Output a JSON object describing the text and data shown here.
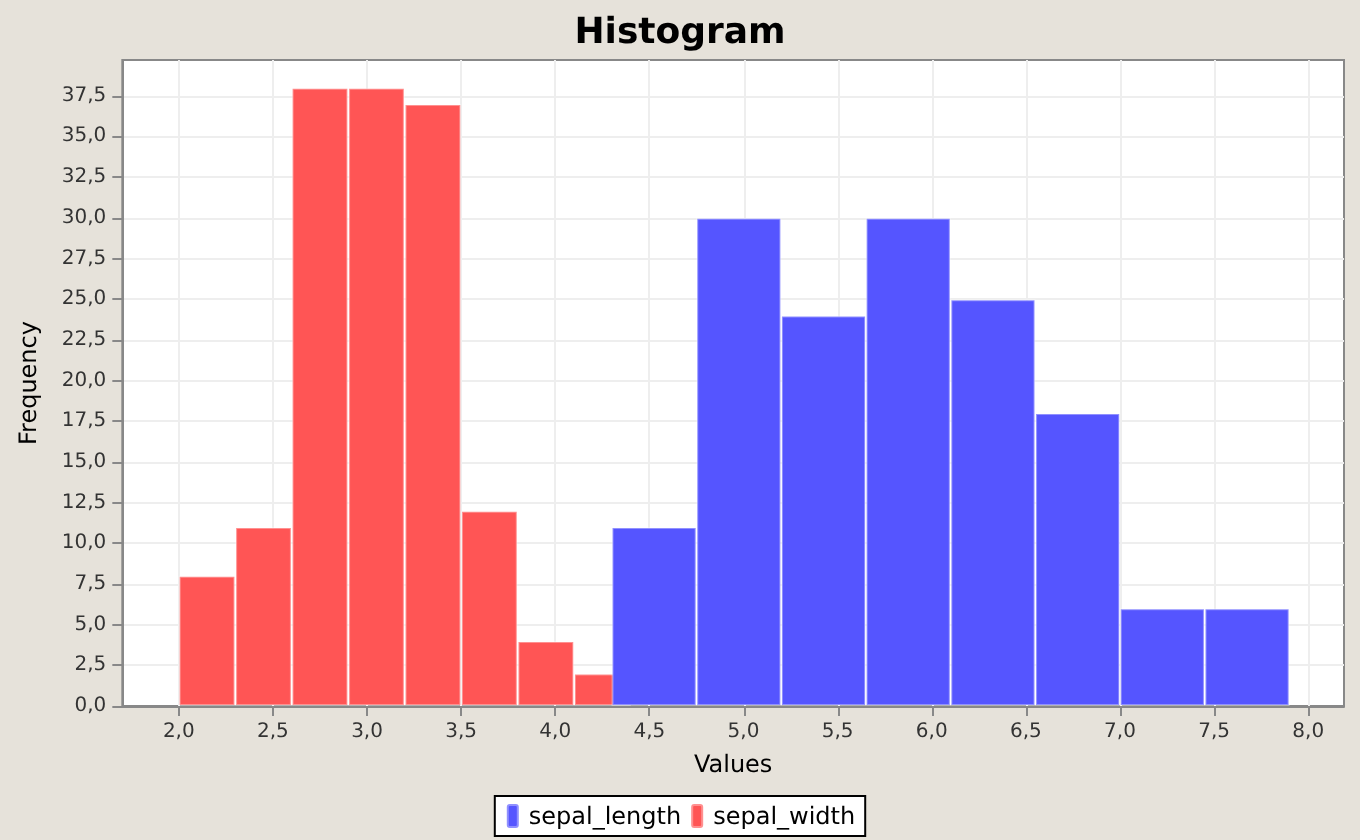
{
  "chart_data": {
    "type": "bar",
    "title": "Histogram",
    "xlabel": "Values",
    "ylabel": "Frequency",
    "series": [
      {
        "name": "sepal_length",
        "color": "#5555ff",
        "x": [
          4.525,
          4.975,
          5.425,
          5.875,
          6.325,
          6.775,
          7.225,
          7.675
        ],
        "values": [
          11,
          30,
          24,
          30,
          25,
          18,
          6,
          6
        ]
      },
      {
        "name": "sepal_width",
        "color": "#ff5555",
        "x": [
          2.15,
          2.45,
          2.75,
          3.05,
          3.35,
          3.65,
          3.95,
          4.25
        ],
        "values": [
          8,
          11,
          38,
          38,
          37,
          12,
          4,
          2
        ]
      }
    ],
    "xlim": [
      1.7,
      8.19
    ],
    "xticks": [
      {
        "value": 2,
        "label": "2,0"
      },
      {
        "value": 2.5,
        "label": "2,5"
      },
      {
        "value": 3,
        "label": "3,0"
      },
      {
        "value": 3.5,
        "label": "3,5"
      },
      {
        "value": 4,
        "label": "4,0"
      },
      {
        "value": 4.5,
        "label": "4,5"
      },
      {
        "value": 5,
        "label": "5,0"
      },
      {
        "value": 5.5,
        "label": "5,5"
      },
      {
        "value": 6,
        "label": "6,0"
      },
      {
        "value": 6.5,
        "label": "6,5"
      },
      {
        "value": 7,
        "label": "7,0"
      },
      {
        "value": 7.5,
        "label": "7,5"
      },
      {
        "value": 8,
        "label": "8,0"
      }
    ],
    "ylim": [
      0,
      39.7
    ],
    "yticks": [
      {
        "value": 0,
        "label": "0,0"
      },
      {
        "value": 2.5,
        "label": "2,5"
      },
      {
        "value": 5,
        "label": "5,0"
      },
      {
        "value": 7.5,
        "label": "7,5"
      },
      {
        "value": 10,
        "label": "10,0"
      },
      {
        "value": 12.5,
        "label": "12,5"
      },
      {
        "value": 15,
        "label": "15,0"
      },
      {
        "value": 17.5,
        "label": "17,5"
      },
      {
        "value": 20,
        "label": "20,0"
      },
      {
        "value": 22.5,
        "label": "22,5"
      },
      {
        "value": 25,
        "label": "25,0"
      },
      {
        "value": 27.5,
        "label": "27,5"
      },
      {
        "value": 30,
        "label": "30,0"
      },
      {
        "value": 32.5,
        "label": "32,5"
      },
      {
        "value": 35,
        "label": "35,0"
      },
      {
        "value": 37.5,
        "label": "37,5"
      }
    ],
    "grid": true,
    "legend": "bottom"
  }
}
